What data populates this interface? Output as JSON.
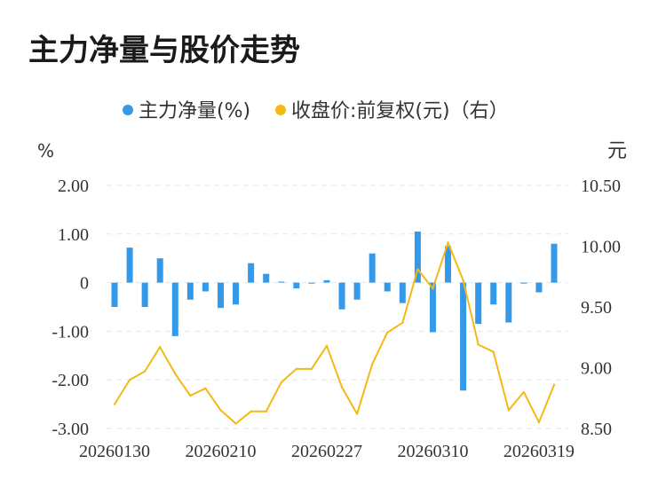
{
  "chart_data": {
    "type": "bar+line",
    "title": "主力净量与股价走势",
    "legend": {
      "position": "top-center",
      "items": [
        {
          "label": "主力净量(%)",
          "color": "#3399e8"
        },
        {
          "label": "收盘价:前复权(元)（右）",
          "color": "#f5b914"
        }
      ]
    },
    "left_axis": {
      "unit": "%",
      "ylim": [
        -3,
        2
      ],
      "ticks": [
        "2.00",
        "1.00",
        "0",
        "-1.00",
        "-2.00",
        "-3.00"
      ]
    },
    "right_axis": {
      "unit": "元",
      "ylim": [
        8.5,
        10.5
      ],
      "ticks": [
        "10.50",
        "10.00",
        "9.50",
        "9.00",
        "8.50"
      ]
    },
    "x_tick_labels": [
      "20260130",
      "20260210",
      "20260227",
      "20260310",
      "20260319"
    ],
    "x_tick_indices": [
      0,
      7,
      14,
      21,
      28
    ],
    "grid": "horizontal-dashed",
    "series": [
      {
        "name": "主力净量(%)",
        "type": "bar",
        "color": "#3399e8",
        "values": [
          -0.5,
          0.72,
          -0.5,
          0.5,
          -1.1,
          -0.35,
          -0.18,
          -0.52,
          -0.45,
          0.4,
          0.18,
          0.02,
          -0.12,
          -0.02,
          0.05,
          -0.55,
          -0.35,
          0.6,
          -0.18,
          -0.42,
          1.05,
          -1.02,
          0.75,
          -2.22,
          -0.85,
          -0.45,
          -0.82,
          -0.02,
          -0.2,
          0.8
        ]
      },
      {
        "name": "收盘价:前复权(元)（右）",
        "type": "line",
        "color": "#f5b914",
        "values": [
          8.7,
          8.9,
          8.97,
          9.17,
          8.95,
          8.77,
          8.83,
          8.65,
          8.54,
          8.64,
          8.64,
          8.88,
          8.99,
          8.99,
          9.18,
          8.84,
          8.62,
          9.03,
          9.29,
          9.37,
          9.81,
          9.65,
          10.03,
          9.72,
          9.19,
          9.13,
          8.65,
          8.8,
          8.55,
          8.86
        ]
      }
    ]
  }
}
